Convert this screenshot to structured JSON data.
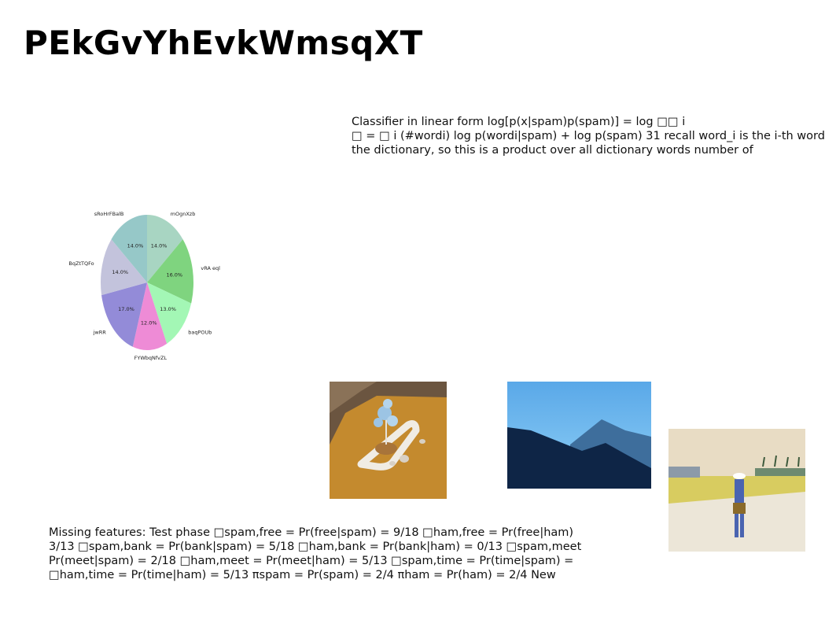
{
  "title": "PEkGvYhEvkWmsqXT",
  "paragraph_top": {
    "lines": [
      "Classifier in linear form log[p(x|spam)p(spam)] = log □□ i",
      "□ = □ i (#wordi) log p(wordi|spam) + log p(spam) 31 recall word_i is the i-th word",
      "the dictionary, so this is a product over all dictionary words number of"
    ]
  },
  "paragraph_bottom": {
    "lines": [
      "Missing features: Test phase □spam,free = Pr(free|spam) = 9/18 □ham,free = Pr(free|ham)",
      "3/13 □spam,bank = Pr(bank|spam) = 5/18 □ham,bank = Pr(bank|ham) = 0/13 □spam,meet",
      "Pr(meet|spam) = 2/18 □ham,meet = Pr(meet|ham) = 5/13 □spam,time = Pr(time|spam) =",
      "□ham,time = Pr(time|ham) = 5/13 πspam = Pr(spam) = 2/4 πham = Pr(ham) = 2/4 New"
    ]
  },
  "chart_data": {
    "type": "pie",
    "start_angle_deg": 90,
    "direction": "clockwise",
    "slices": [
      {
        "label": "mOgnXzb",
        "value": 14.0,
        "pct_label": "14.0%",
        "color": "#a8d5c2"
      },
      {
        "label": "vRA eql",
        "value": 16.0,
        "pct_label": "16.0%",
        "color": "#7fd47f"
      },
      {
        "label": "baqPOUb",
        "value": 13.0,
        "pct_label": "13.0%",
        "color": "#a3f7b5"
      },
      {
        "label": "FYWbqNfvZL",
        "value": 12.0,
        "pct_label": "12.0%",
        "color": "#ee8bd6"
      },
      {
        "label": "jwRR",
        "value": 17.0,
        "pct_label": "17.0%",
        "color": "#938bd8"
      },
      {
        "label": "BqZtTQFo",
        "value": 14.0,
        "pct_label": "14.0%",
        "color": "#c3c3dc"
      },
      {
        "label": "sRoHrFBalB",
        "value": 14.0,
        "pct_label": "14.0%",
        "color": "#96c8c8"
      }
    ]
  },
  "images": [
    {
      "name": "sculpture-photo",
      "colors": {
        "floor": "#c48a2e",
        "wall": "#6b5540",
        "loop": "#f0ece4",
        "tree": "#9cc4e4"
      }
    },
    {
      "name": "mountain-photo",
      "colors": {
        "sky_top": "#5aa8e8",
        "sky_bottom": "#8fd0f6",
        "ridge_far": "#3e6e9c",
        "ridge_near": "#0e2546"
      }
    },
    {
      "name": "beach-photo",
      "colors": {
        "sky": "#e8dcc4",
        "sea": "#d8cc60",
        "sand": "#ece6d8",
        "figure": "#4a64b0"
      }
    }
  ]
}
